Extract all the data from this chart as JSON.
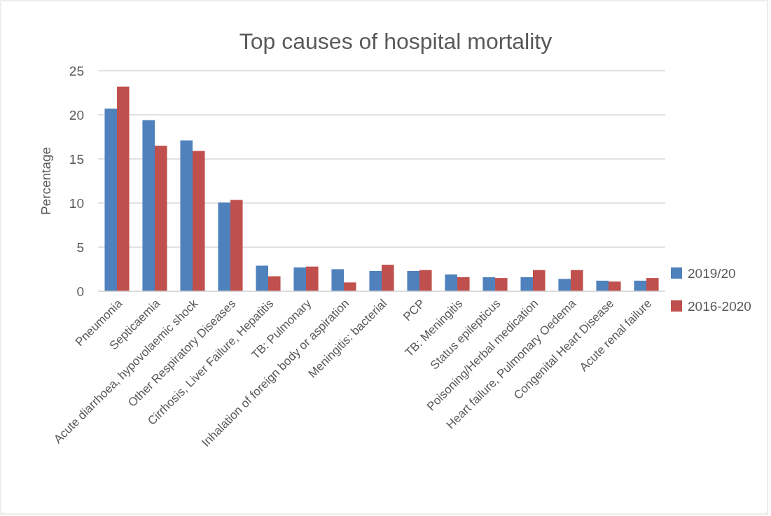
{
  "chart_data": {
    "type": "bar",
    "title": "Top causes of hospital mortality",
    "ylabel": "Percentage",
    "categories": [
      "Pneumonia",
      "Septicaemia",
      "Acute diarrhoea, hypovolaemic shock",
      "Other Respiratory Diseases",
      "Cirrhosis, Liver Failure, Hepatitis",
      "TB: Pulmonary",
      "Inhalation of foreign body or aspiration",
      "Meningitis: bacterial",
      "PCP",
      "TB: Meningitis",
      "Status epilepticus",
      "Poisoning/Herbal medication",
      "Heart failure, Pulmonary Oedema",
      "Congenital Heart Disease",
      "Acute renal failure"
    ],
    "series": [
      {
        "name": "2019/20",
        "color": "#4f81bd",
        "values": [
          20.7,
          19.4,
          17.1,
          10.05,
          2.9,
          2.7,
          2.5,
          2.3,
          2.3,
          1.9,
          1.6,
          1.6,
          1.4,
          1.2,
          1.2
        ]
      },
      {
        "name": "2016-2020",
        "color": "#c0504d",
        "values": [
          23.2,
          16.5,
          15.9,
          10.35,
          1.7,
          2.8,
          1.0,
          3.0,
          2.4,
          1.6,
          1.5,
          2.4,
          2.4,
          1.1,
          1.5
        ]
      }
    ],
    "ylim": [
      0,
      25
    ],
    "yticks": [
      0,
      5,
      10,
      15,
      20,
      25
    ],
    "grid": "y",
    "legend": "right"
  }
}
